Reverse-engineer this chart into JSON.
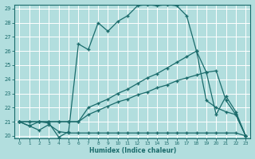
{
  "xlabel": "Humidex (Indice chaleur)",
  "bg_color": "#b2dede",
  "grid_color": "#d0eded",
  "line_color": "#1a6b6b",
  "xlim": [
    0,
    23
  ],
  "ylim": [
    20,
    29
  ],
  "line1": {
    "x": [
      0,
      1,
      2,
      3,
      4,
      5,
      6,
      7,
      8,
      9,
      10,
      11,
      12,
      13,
      14,
      15,
      16,
      17,
      18,
      19,
      20,
      21,
      22,
      23
    ],
    "y": [
      21.0,
      20.7,
      21.0,
      20.9,
      19.9,
      20.3,
      26.5,
      26.1,
      28.0,
      27.4,
      28.1,
      28.5,
      29.2,
      29.3,
      29.2,
      29.3,
      29.2,
      28.5,
      26.0,
      24.5,
      21.5,
      22.8,
      21.7,
      20.0
    ]
  },
  "line2": {
    "x": [
      0,
      1,
      2,
      3,
      4,
      5,
      6,
      7,
      8,
      9,
      10,
      11,
      12,
      13,
      14,
      15,
      16,
      17,
      18,
      19,
      20,
      21,
      22,
      23
    ],
    "y": [
      21.0,
      21.0,
      21.0,
      21.0,
      21.0,
      21.0,
      21.0,
      22.0,
      22.3,
      22.6,
      23.0,
      23.3,
      23.7,
      24.1,
      24.4,
      24.8,
      25.2,
      25.6,
      26.0,
      22.5,
      22.0,
      21.7,
      21.5,
      20.0
    ]
  },
  "line3": {
    "x": [
      0,
      1,
      2,
      3,
      4,
      5,
      6,
      7,
      8,
      9,
      10,
      11,
      12,
      13,
      14,
      15,
      16,
      17,
      18,
      19,
      20,
      21,
      22,
      23
    ],
    "y": [
      21.0,
      21.0,
      21.0,
      21.0,
      21.0,
      21.0,
      21.0,
      21.5,
      21.8,
      22.1,
      22.4,
      22.6,
      22.9,
      23.1,
      23.4,
      23.6,
      23.9,
      24.1,
      24.3,
      24.5,
      24.6,
      22.5,
      21.5,
      20.0
    ]
  },
  "line4": {
    "x": [
      0,
      1,
      2,
      3,
      4,
      5,
      6,
      7,
      8,
      9,
      10,
      11,
      12,
      13,
      14,
      15,
      16,
      17,
      18,
      19,
      20,
      21,
      22,
      23
    ],
    "y": [
      21.0,
      20.7,
      20.4,
      20.8,
      20.3,
      20.2,
      20.2,
      20.2,
      20.2,
      20.2,
      20.2,
      20.2,
      20.2,
      20.2,
      20.2,
      20.2,
      20.2,
      20.2,
      20.2,
      20.2,
      20.2,
      20.2,
      20.2,
      20.0
    ]
  }
}
